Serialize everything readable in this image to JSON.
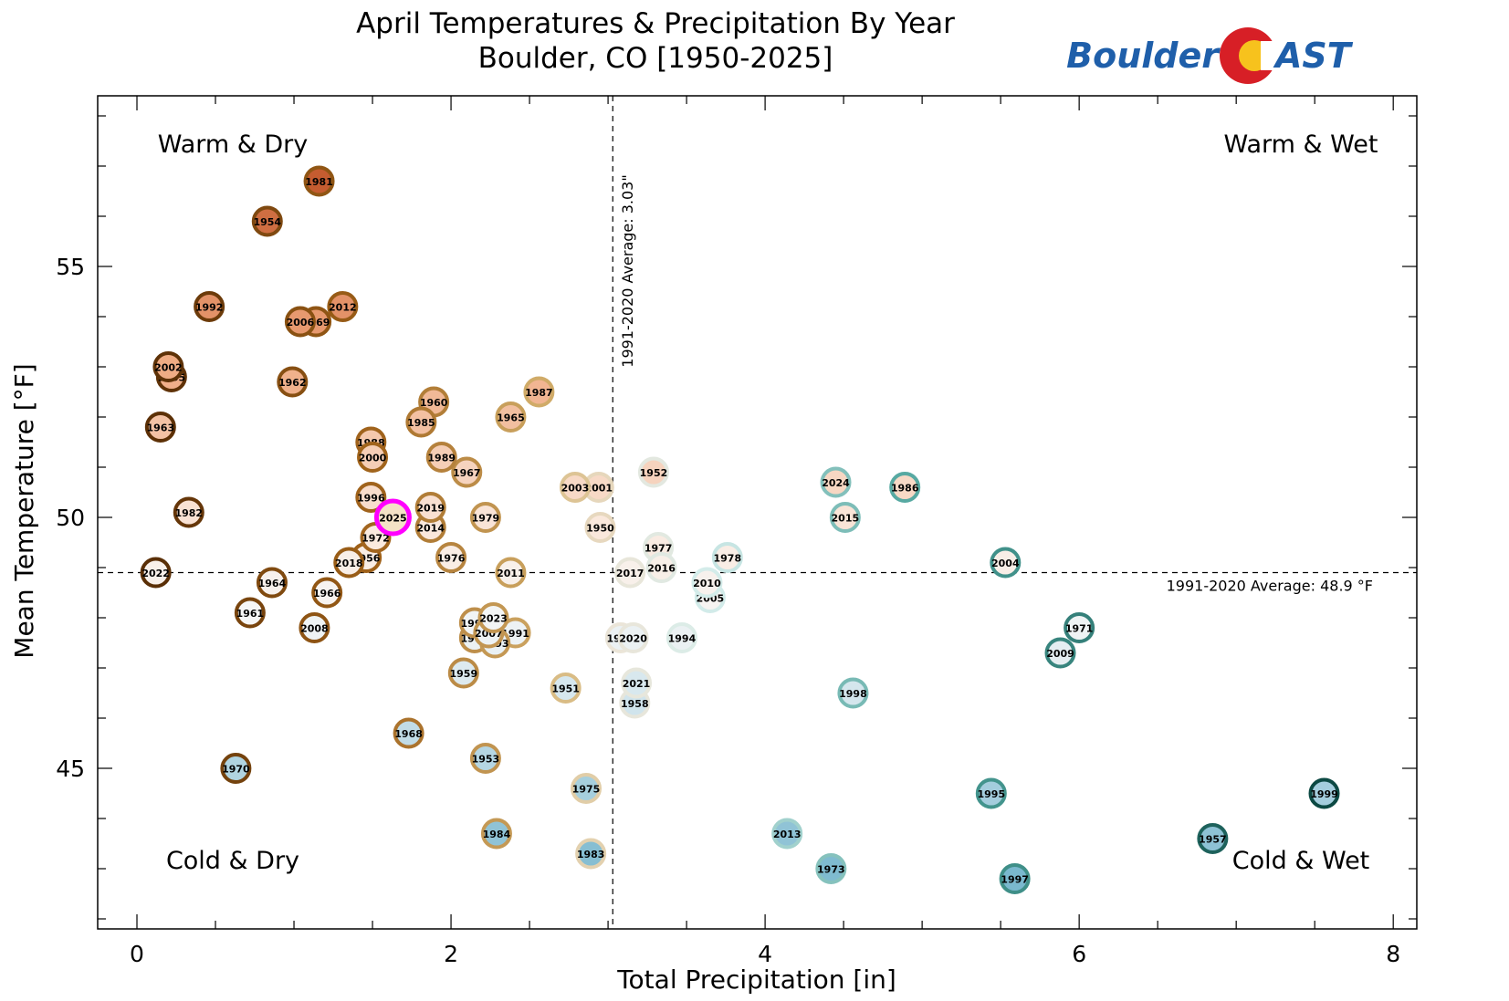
{
  "header": {
    "title_line1": "April Temperatures & Precipitation By Year",
    "title_line2": "Boulder, CO [1950-2025]"
  },
  "logo": {
    "text_left": "Boulder",
    "text_right": "AST",
    "colors": {
      "text": "#1f5faa",
      "red": "#d71f26",
      "gold": "#f7c21d"
    }
  },
  "quadrants": {
    "top_left": "Warm & Dry",
    "top_right": "Warm & Wet",
    "bottom_left": "Cold & Dry",
    "bottom_right": "Cold & Wet"
  },
  "chart_data": {
    "type": "scatter",
    "title": "April Temperatures & Precipitation By Year\nBoulder, CO [1950-2025]",
    "xlabel": "Total Precipitation [in]",
    "ylabel": "Mean Temperature [°F]",
    "xlim": [
      -0.25,
      8.15
    ],
    "ylim": [
      41.8,
      58.4
    ],
    "xticks": [
      0,
      2,
      4,
      6,
      8
    ],
    "yticks": [
      45,
      50,
      55
    ],
    "grid": false,
    "averages": {
      "precip": 3.03,
      "temp": 48.9,
      "precip_label": "1991-2020 Average: 3.03\"",
      "temp_label": "1991-2020 Average: 48.9 °F"
    },
    "highlight_year": "2025",
    "highlight_color": "#ff00ff",
    "points": [
      {
        "year": "1950",
        "x": 2.95,
        "y": 49.8
      },
      {
        "year": "1951",
        "x": 2.73,
        "y": 46.6
      },
      {
        "year": "1952",
        "x": 3.29,
        "y": 50.9
      },
      {
        "year": "1953",
        "x": 2.22,
        "y": 45.2
      },
      {
        "year": "1954",
        "x": 0.83,
        "y": 55.9
      },
      {
        "year": "1955",
        "x": 0.22,
        "y": 52.8
      },
      {
        "year": "1956",
        "x": 1.46,
        "y": 49.2
      },
      {
        "year": "1957",
        "x": 6.85,
        "y": 43.6
      },
      {
        "year": "1958",
        "x": 3.17,
        "y": 46.3
      },
      {
        "year": "1959",
        "x": 2.08,
        "y": 46.9
      },
      {
        "year": "1960",
        "x": 1.89,
        "y": 52.3
      },
      {
        "year": "1961",
        "x": 0.72,
        "y": 48.1
      },
      {
        "year": "1962",
        "x": 0.99,
        "y": 52.7
      },
      {
        "year": "1963",
        "x": 0.15,
        "y": 51.8
      },
      {
        "year": "1964",
        "x": 0.86,
        "y": 48.7
      },
      {
        "year": "1965",
        "x": 2.38,
        "y": 52.0
      },
      {
        "year": "1966",
        "x": 1.21,
        "y": 48.5
      },
      {
        "year": "1967",
        "x": 2.1,
        "y": 50.9
      },
      {
        "year": "1968",
        "x": 1.73,
        "y": 45.7
      },
      {
        "year": "1969",
        "x": 1.14,
        "y": 53.9
      },
      {
        "year": "1970",
        "x": 0.63,
        "y": 45.0
      },
      {
        "year": "1971",
        "x": 6.0,
        "y": 47.8
      },
      {
        "year": "1972",
        "x": 1.52,
        "y": 49.6
      },
      {
        "year": "1973",
        "x": 4.42,
        "y": 43.0
      },
      {
        "year": "1974",
        "x": 3.08,
        "y": 47.6
      },
      {
        "year": "1975",
        "x": 2.86,
        "y": 44.6
      },
      {
        "year": "1976",
        "x": 2.0,
        "y": 49.2
      },
      {
        "year": "1977",
        "x": 3.32,
        "y": 49.4
      },
      {
        "year": "1978",
        "x": 3.76,
        "y": 49.2
      },
      {
        "year": "1979",
        "x": 2.22,
        "y": 50.0
      },
      {
        "year": "1980",
        "x": 2.15,
        "y": 47.6
      },
      {
        "year": "1981",
        "x": 1.16,
        "y": 56.7
      },
      {
        "year": "1982",
        "x": 0.33,
        "y": 50.1
      },
      {
        "year": "1983",
        "x": 2.89,
        "y": 43.3
      },
      {
        "year": "1984",
        "x": 2.29,
        "y": 43.7
      },
      {
        "year": "1985",
        "x": 1.81,
        "y": 51.9
      },
      {
        "year": "1986",
        "x": 4.89,
        "y": 50.6
      },
      {
        "year": "1987",
        "x": 2.56,
        "y": 52.5
      },
      {
        "year": "1988",
        "x": 1.49,
        "y": 51.5
      },
      {
        "year": "1989",
        "x": 1.94,
        "y": 51.2
      },
      {
        "year": "1990",
        "x": 2.15,
        "y": 47.9
      },
      {
        "year": "1991",
        "x": 2.41,
        "y": 47.7
      },
      {
        "year": "1992",
        "x": 0.46,
        "y": 54.2
      },
      {
        "year": "1993",
        "x": 2.28,
        "y": 47.5
      },
      {
        "year": "1994",
        "x": 3.47,
        "y": 47.6
      },
      {
        "year": "1995",
        "x": 5.44,
        "y": 44.5
      },
      {
        "year": "1996",
        "x": 1.49,
        "y": 50.4
      },
      {
        "year": "1997",
        "x": 5.59,
        "y": 42.8
      },
      {
        "year": "1998",
        "x": 4.56,
        "y": 46.5
      },
      {
        "year": "1999",
        "x": 7.56,
        "y": 44.5
      },
      {
        "year": "2000",
        "x": 1.5,
        "y": 51.2
      },
      {
        "year": "2001",
        "x": 2.94,
        "y": 50.6
      },
      {
        "year": "2002",
        "x": 0.2,
        "y": 53.0
      },
      {
        "year": "2003",
        "x": 2.79,
        "y": 50.6
      },
      {
        "year": "2004",
        "x": 5.53,
        "y": 49.1
      },
      {
        "year": "2005",
        "x": 3.65,
        "y": 48.4
      },
      {
        "year": "2006",
        "x": 1.04,
        "y": 53.9
      },
      {
        "year": "2007",
        "x": 2.24,
        "y": 47.7
      },
      {
        "year": "2008",
        "x": 1.13,
        "y": 47.8
      },
      {
        "year": "2009",
        "x": 5.88,
        "y": 47.3
      },
      {
        "year": "2010",
        "x": 3.63,
        "y": 48.7
      },
      {
        "year": "2011",
        "x": 2.38,
        "y": 48.9
      },
      {
        "year": "2012",
        "x": 1.31,
        "y": 54.2
      },
      {
        "year": "2013",
        "x": 4.14,
        "y": 43.7
      },
      {
        "year": "2014",
        "x": 1.87,
        "y": 49.8
      },
      {
        "year": "2015",
        "x": 4.51,
        "y": 50.0
      },
      {
        "year": "2016",
        "x": 3.34,
        "y": 49.0
      },
      {
        "year": "2017",
        "x": 3.14,
        "y": 48.9
      },
      {
        "year": "2018",
        "x": 1.35,
        "y": 49.1
      },
      {
        "year": "2019",
        "x": 1.87,
        "y": 50.2
      },
      {
        "year": "2020",
        "x": 3.16,
        "y": 47.6
      },
      {
        "year": "2021",
        "x": 3.18,
        "y": 46.7
      },
      {
        "year": "2022",
        "x": 0.12,
        "y": 48.9
      },
      {
        "year": "2023",
        "x": 2.27,
        "y": 48.0
      },
      {
        "year": "2024",
        "x": 4.45,
        "y": 50.7
      },
      {
        "year": "2025",
        "x": 1.63,
        "y": 50.0
      }
    ]
  }
}
